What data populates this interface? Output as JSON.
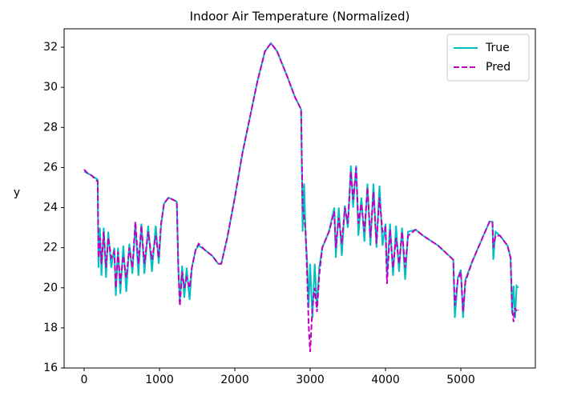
{
  "chart_data": {
    "type": "line",
    "title": "Indoor Air Temperature (Normalized)",
    "y_label": "y",
    "x": [
      0,
      50,
      100,
      180,
      190,
      210,
      230,
      260,
      290,
      320,
      360,
      400,
      420,
      450,
      480,
      520,
      560,
      600,
      640,
      680,
      720,
      760,
      800,
      850,
      900,
      950,
      990,
      1020,
      1060,
      1120,
      1230,
      1250,
      1270,
      1300,
      1330,
      1360,
      1400,
      1430,
      1480,
      1520,
      1600,
      1700,
      1780,
      1820,
      1900,
      2000,
      2100,
      2200,
      2300,
      2400,
      2480,
      2560,
      2700,
      2800,
      2880,
      2900,
      2920,
      2940,
      2960,
      2980,
      3000,
      3030,
      3060,
      3090,
      3120,
      3160,
      3250,
      3320,
      3340,
      3380,
      3420,
      3460,
      3500,
      3540,
      3570,
      3610,
      3640,
      3680,
      3720,
      3760,
      3800,
      3840,
      3880,
      3920,
      3960,
      4000,
      4020,
      4060,
      4100,
      4140,
      4180,
      4220,
      4260,
      4300,
      4400,
      4500,
      4700,
      4900,
      4920,
      4960,
      5000,
      5030,
      5060,
      5150,
      5300,
      5380,
      5420,
      5430,
      5460,
      5520,
      5620,
      5660,
      5680,
      5700,
      5720,
      5740,
      5760
    ],
    "series": [
      {
        "name": "True",
        "color": "#00bfbf",
        "dash": "solid",
        "values": [
          25.8,
          25.7,
          25.6,
          25.4,
          21,
          23,
          20.6,
          23,
          20.5,
          22.8,
          21,
          22,
          19.6,
          22,
          19.7,
          22.1,
          19.8,
          22.2,
          20.7,
          23.2,
          20.6,
          23.2,
          20.7,
          23.1,
          20.8,
          23.1,
          21.2,
          23.1,
          24.2,
          24.5,
          24.3,
          21,
          19.3,
          21.1,
          19.5,
          21,
          19.4,
          21,
          21.9,
          22.1,
          21.9,
          21.6,
          21.2,
          21.2,
          22.5,
          24.5,
          26.7,
          28.5,
          30.3,
          31.8,
          32.2,
          31.8,
          30.5,
          29.5,
          28.9,
          22.8,
          25.2,
          22.5,
          21.3,
          19,
          21.2,
          18.5,
          21.2,
          19,
          21,
          22,
          22.8,
          24,
          21.5,
          24,
          21.6,
          24.1,
          23,
          26.1,
          24,
          26.1,
          22.6,
          24.5,
          22.3,
          25.2,
          22.1,
          25.2,
          22,
          25.1,
          22.1,
          23.2,
          20.6,
          23.2,
          20.6,
          23.1,
          20.8,
          23,
          20.4,
          22.8,
          22.9,
          22.6,
          22.1,
          21.4,
          18.5,
          20.5,
          20.9,
          18.5,
          20.4,
          21.3,
          22.6,
          23.3,
          23.3,
          21.4,
          22.8,
          22.6,
          22.1,
          21.5,
          18.7,
          20.1,
          18.5,
          20.1,
          20
        ]
      },
      {
        "name": "Pred",
        "color": "#bf00bf",
        "dash": "dashed",
        "values": [
          25.9,
          25.7,
          25.6,
          25.3,
          21.5,
          22.5,
          21.2,
          22.8,
          21,
          22.5,
          21.5,
          21.8,
          20,
          21.8,
          20.2,
          21.6,
          20.5,
          22,
          21,
          23.3,
          21.2,
          23.1,
          21.2,
          22.8,
          21.4,
          22.6,
          21.5,
          23.2,
          24.2,
          24.5,
          24.3,
          21,
          19.1,
          20.8,
          20,
          20.5,
          20,
          21,
          21.9,
          22.2,
          21.9,
          21.6,
          21.2,
          21.2,
          22.5,
          24.5,
          26.7,
          28.5,
          30.3,
          31.8,
          32.2,
          31.8,
          30.5,
          29.5,
          28.9,
          24,
          23.5,
          22.8,
          20.5,
          18.2,
          16.8,
          19,
          20,
          18.8,
          20.6,
          22,
          22.8,
          23.8,
          22,
          23.5,
          22.2,
          24,
          23.2,
          25.8,
          24.4,
          26,
          23.2,
          24.2,
          22.8,
          25,
          22.5,
          24.8,
          22.2,
          24.5,
          22.8,
          23,
          20.2,
          22.9,
          21,
          22.5,
          21.2,
          22.8,
          21,
          22.6,
          22.9,
          22.6,
          22.1,
          21.4,
          19.1,
          20.4,
          20.8,
          18.8,
          20.3,
          21.3,
          22.6,
          23.3,
          23.3,
          22,
          22.6,
          22.6,
          22.1,
          21.5,
          19,
          18.3,
          19,
          18.8,
          18.9
        ]
      }
    ],
    "xlim": [
      -266,
      5989
    ],
    "ylim": [
      16,
      32.92
    ],
    "xticks": [
      0,
      1000,
      2000,
      3000,
      4000,
      5000
    ],
    "yticks": [
      16,
      18,
      20,
      22,
      24,
      26,
      28,
      30,
      32
    ],
    "legend": "upper right"
  }
}
